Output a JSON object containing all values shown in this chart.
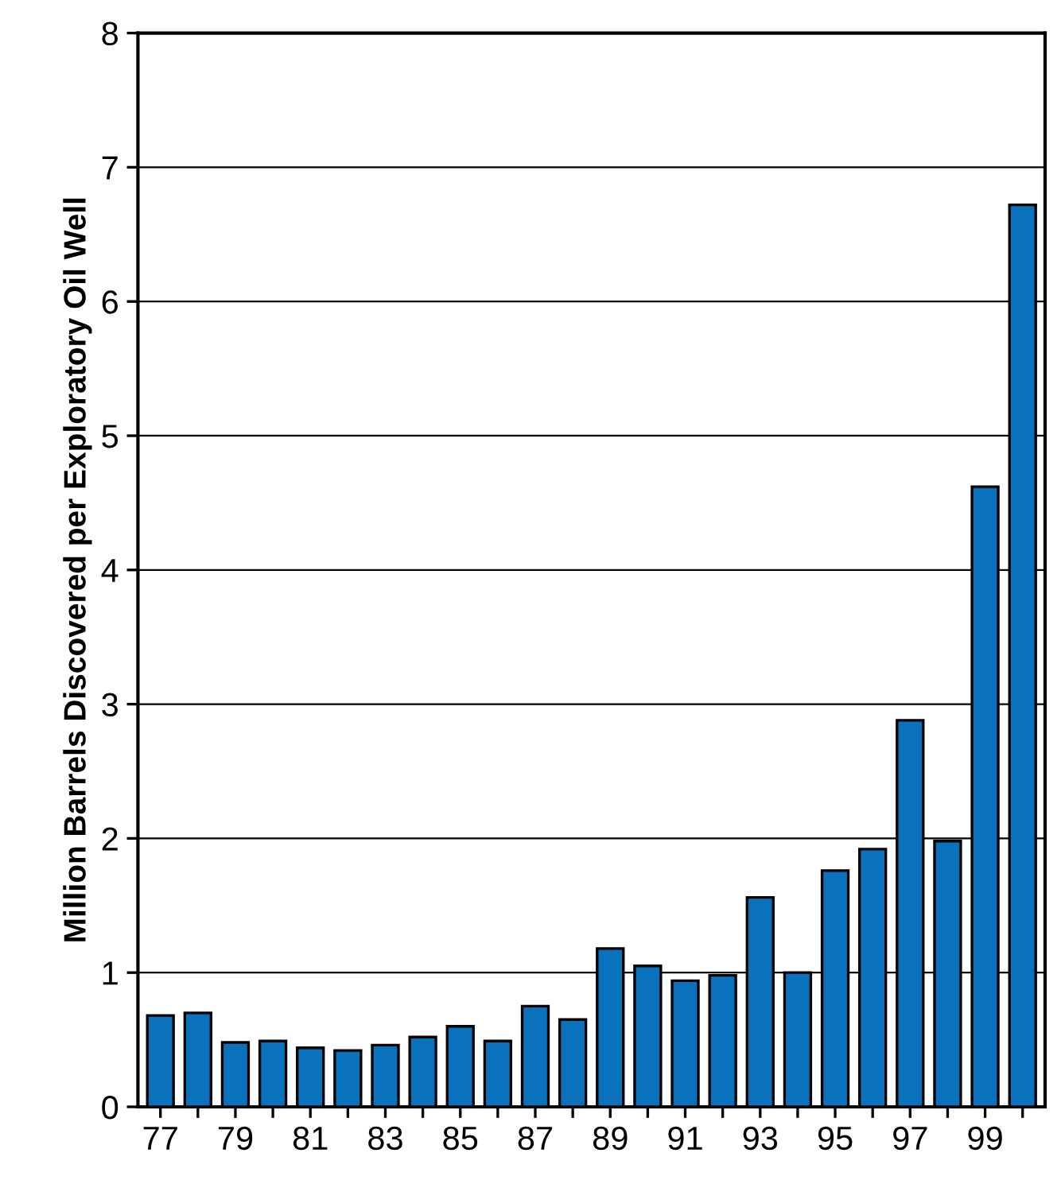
{
  "chart_data": {
    "type": "bar",
    "ylabel": "Million Barrels Discovered per Exploratory Oil Well",
    "categories": [
      "77",
      null,
      "79",
      null,
      "81",
      null,
      "83",
      null,
      "85",
      null,
      "87",
      null,
      "89",
      null,
      "91",
      null,
      "93",
      null,
      "95",
      null,
      "97",
      null,
      "99",
      null
    ],
    "values": [
      0.68,
      0.7,
      0.48,
      0.49,
      0.44,
      0.42,
      0.46,
      0.52,
      0.6,
      0.49,
      0.75,
      0.65,
      1.18,
      1.05,
      0.94,
      0.98,
      1.56,
      1.0,
      1.76,
      1.92,
      2.88,
      1.98,
      4.62,
      6.72
    ],
    "color": "#0a72bc",
    "ylim": [
      0,
      8
    ],
    "yticks": [
      0,
      1,
      2,
      3,
      4,
      5,
      6,
      7,
      8
    ],
    "grid": "y",
    "legend": false
  }
}
